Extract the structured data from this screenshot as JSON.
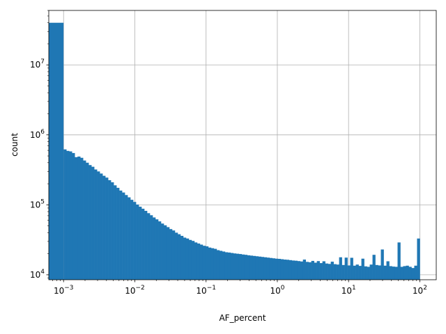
{
  "chart_data": {
    "type": "bar",
    "subtype": "histogram",
    "xlabel": "AF_percent",
    "ylabel": "count",
    "xscale": "log",
    "yscale": "log",
    "xlim": [
      0.00062,
      170
    ],
    "ylim": [
      8500,
      60000000
    ],
    "grid": true,
    "bar_color": "#1f77b4",
    "x_ticks": [
      {
        "value": 0.001,
        "base": "10",
        "exp": "−3"
      },
      {
        "value": 0.01,
        "base": "10",
        "exp": "−2"
      },
      {
        "value": 0.1,
        "base": "10",
        "exp": "−1"
      },
      {
        "value": 1,
        "base": "10",
        "exp": "0"
      },
      {
        "value": 10,
        "base": "10",
        "exp": "1"
      },
      {
        "value": 100,
        "base": "10",
        "exp": "2"
      }
    ],
    "y_ticks": [
      {
        "value": 10000,
        "base": "10",
        "exp": "4"
      },
      {
        "value": 100000,
        "base": "10",
        "exp": "5"
      },
      {
        "value": 1000000,
        "base": "10",
        "exp": "6"
      },
      {
        "value": 10000000,
        "base": "10",
        "exp": "7"
      }
    ],
    "first_bin": {
      "x0": 0.00062,
      "x1": 0.001,
      "count": 40000000
    },
    "bins_range": [
      0.001,
      100
    ],
    "values": [
      620000,
      590000,
      580000,
      550000,
      480000,
      490000,
      470000,
      430000,
      400000,
      370000,
      350000,
      320000,
      300000,
      280000,
      260000,
      245000,
      225000,
      210000,
      190000,
      175000,
      160000,
      150000,
      138000,
      128000,
      118000,
      110000,
      101000,
      94000,
      88000,
      82000,
      76000,
      71000,
      66000,
      62000,
      58000,
      54000,
      51000,
      48000,
      45000,
      43000,
      40000,
      38000,
      36000,
      34000,
      33000,
      31500,
      30500,
      29000,
      28000,
      27000,
      26000,
      25500,
      24500,
      24000,
      23500,
      22500,
      22000,
      21500,
      21000,
      20800,
      20500,
      20200,
      20000,
      19800,
      19500,
      19300,
      19000,
      18800,
      18600,
      18400,
      18200,
      18000,
      17800,
      17600,
      17400,
      17200,
      17000,
      16900,
      16700,
      16500,
      16400,
      16200,
      16000,
      15900,
      15700,
      15500,
      16500,
      15300,
      15100,
      15800,
      14900,
      15700,
      14700,
      15600,
      14500,
      14300,
      15400,
      14200,
      14000,
      17800,
      13800,
      17600,
      13600,
      17500,
      13500,
      14000,
      13400,
      17000,
      13200,
      13000,
      14000,
      19300,
      13800,
      13600,
      23000,
      13500,
      15600,
      13300,
      13100,
      13000,
      29000,
      13000,
      13300,
      13500,
      13000,
      12500,
      13500,
      33000
    ]
  }
}
